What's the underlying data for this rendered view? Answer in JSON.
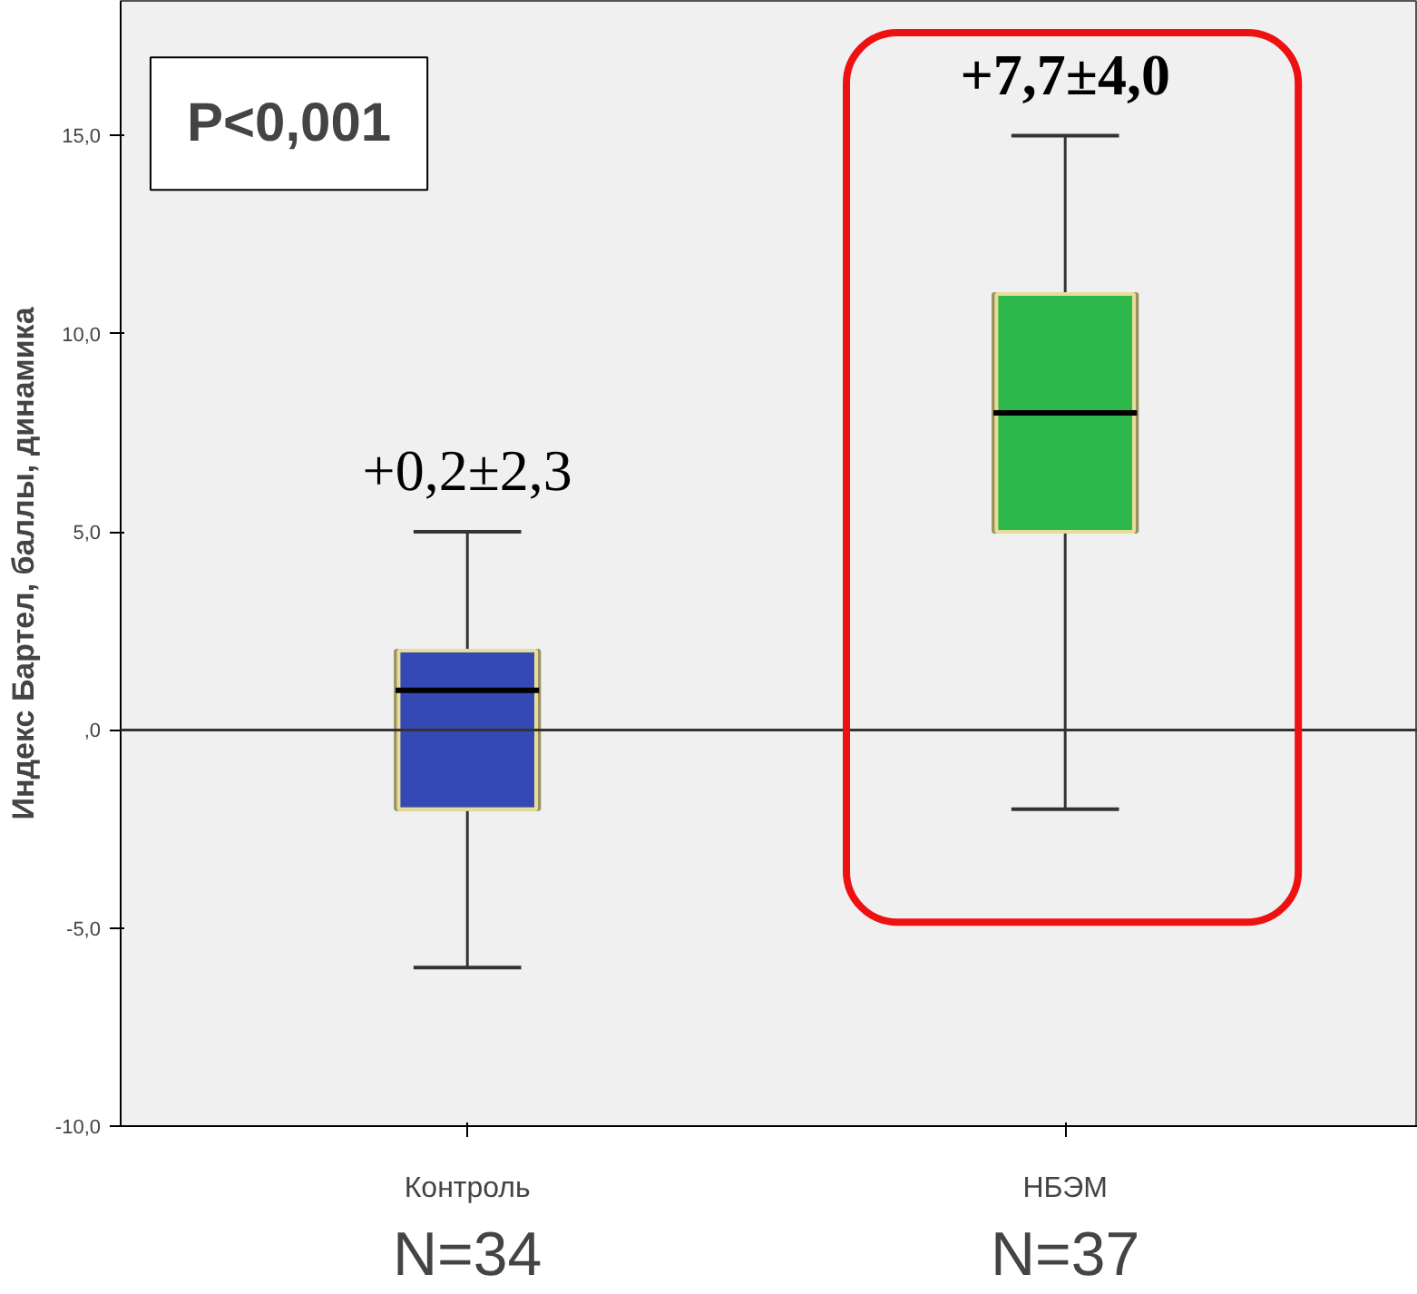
{
  "chart_data": {
    "type": "box",
    "ylabel": "Индекс Бартел, баллы, динамика",
    "categories": [
      "Контроль",
      "НБЭМ"
    ],
    "colors": [
      "#3549b4",
      "#2cb84a"
    ],
    "boxes": [
      {
        "low": -6,
        "q1": -2,
        "median": 1,
        "q3": 2,
        "high": 5
      },
      {
        "low": -2,
        "q1": 5,
        "median": 8,
        "q3": 11,
        "high": 15
      }
    ],
    "ylim": [
      -10,
      18.4
    ],
    "yticks": [
      {
        "value": -10,
        "label": "-10,0"
      },
      {
        "value": -5,
        "label": "-5,0"
      },
      {
        "value": 0,
        "label": ",0"
      },
      {
        "value": 5,
        "label": "5,0"
      },
      {
        "value": 10,
        "label": "10,0"
      },
      {
        "value": 15,
        "label": "15,0"
      }
    ],
    "ref_lines": [
      {
        "axis": "y",
        "value": 0,
        "color": "#333333"
      }
    ],
    "grid": false,
    "annotations": [
      "P<0,001",
      "+0,2±2,3",
      "+7,7±4,0",
      "N=34",
      "N=37"
    ]
  }
}
